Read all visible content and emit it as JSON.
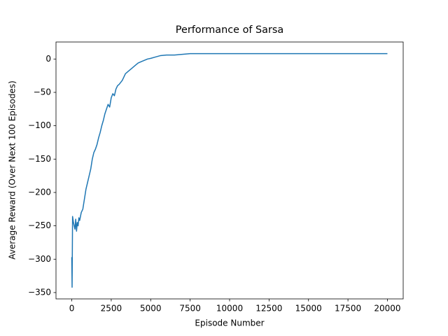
{
  "chart_data": {
    "type": "line",
    "title": "Performance of Sarsa",
    "x_label": "Episode Number",
    "y_label": "Average Reward (Over Next 100 Episodes)",
    "x": [
      0,
      20,
      50,
      100,
      150,
      200,
      250,
      300,
      350,
      400,
      450,
      500,
      600,
      700,
      800,
      900,
      1000,
      1100,
      1200,
      1300,
      1400,
      1500,
      1600,
      1700,
      1800,
      1900,
      2000,
      2100,
      2200,
      2300,
      2400,
      2500,
      2600,
      2700,
      2800,
      2900,
      3000,
      3200,
      3400,
      3600,
      3800,
      4000,
      4200,
      4400,
      4600,
      4800,
      5000,
      5300,
      5600,
      6000,
      6500,
      7000,
      7500,
      8000,
      9000,
      10000,
      11000,
      12000,
      13000,
      14000,
      15000,
      16000,
      17000,
      18000,
      19000,
      20000
    ],
    "series": [
      {
        "name": "Sarsa",
        "color": "#1f77b4",
        "values": [
          -297,
          -342,
          -236,
          -244,
          -250,
          -255,
          -240,
          -258,
          -245,
          -250,
          -238,
          -242,
          -230,
          -225,
          -210,
          -195,
          -185,
          -175,
          -165,
          -150,
          -140,
          -135,
          -128,
          -118,
          -110,
          -100,
          -92,
          -82,
          -75,
          -68,
          -72,
          -58,
          -52,
          -55,
          -45,
          -40,
          -38,
          -32,
          -22,
          -18,
          -14,
          -10,
          -6,
          -4,
          -2,
          0,
          1,
          3,
          5,
          6,
          6,
          7,
          8,
          8,
          8,
          8,
          8,
          8,
          8,
          8,
          8,
          8,
          8,
          8,
          8,
          8
        ]
      }
    ],
    "xlim": [
      -1000,
      21000
    ],
    "ylim": [
      -359.5,
      25.5
    ],
    "xticks": [
      0,
      2500,
      5000,
      7500,
      10000,
      12500,
      15000,
      17500,
      20000
    ],
    "yticks": [
      {
        "value": -350,
        "label": "−350"
      },
      {
        "value": -300,
        "label": "−300"
      },
      {
        "value": -250,
        "label": "−250"
      },
      {
        "value": -200,
        "label": "−200"
      },
      {
        "value": -150,
        "label": "−150"
      },
      {
        "value": -100,
        "label": "−100"
      },
      {
        "value": -50,
        "label": "−50"
      },
      0
    ],
    "grid": false
  }
}
